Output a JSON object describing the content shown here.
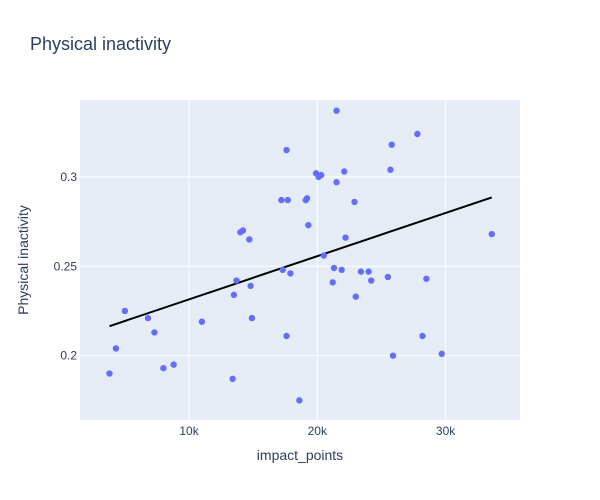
{
  "chart_data": {
    "type": "scatter",
    "title": "Physical inactivity",
    "xlabel": "impact_points",
    "ylabel": "Physical inactivity",
    "xlim": [
      1500,
      35800
    ],
    "ylim": [
      0.164,
      0.343
    ],
    "x_ticks": [
      {
        "value": 10000,
        "label": "10k"
      },
      {
        "value": 20000,
        "label": "20k"
      },
      {
        "value": 30000,
        "label": "30k"
      }
    ],
    "y_ticks": [
      {
        "value": 0.2,
        "label": "0.2"
      },
      {
        "value": 0.25,
        "label": "0.25"
      },
      {
        "value": 0.3,
        "label": "0.3"
      }
    ],
    "grid": true,
    "colors": {
      "points": "#636efa",
      "trendline": "#000000",
      "plot_bg": "#e5ecf6"
    },
    "series": [
      {
        "mode": "markers",
        "points": [
          {
            "x": 3800,
            "y": 0.19
          },
          {
            "x": 4300,
            "y": 0.204
          },
          {
            "x": 5000,
            "y": 0.225
          },
          {
            "x": 6800,
            "y": 0.221
          },
          {
            "x": 7300,
            "y": 0.213
          },
          {
            "x": 8000,
            "y": 0.193
          },
          {
            "x": 8800,
            "y": 0.195
          },
          {
            "x": 11000,
            "y": 0.219
          },
          {
            "x": 13400,
            "y": 0.187
          },
          {
            "x": 13500,
            "y": 0.234
          },
          {
            "x": 13700,
            "y": 0.242
          },
          {
            "x": 14000,
            "y": 0.269
          },
          {
            "x": 14200,
            "y": 0.27
          },
          {
            "x": 14700,
            "y": 0.265
          },
          {
            "x": 14800,
            "y": 0.239
          },
          {
            "x": 14900,
            "y": 0.221
          },
          {
            "x": 17200,
            "y": 0.287
          },
          {
            "x": 17300,
            "y": 0.248
          },
          {
            "x": 17600,
            "y": 0.211
          },
          {
            "x": 17600,
            "y": 0.315
          },
          {
            "x": 17700,
            "y": 0.287
          },
          {
            "x": 17900,
            "y": 0.246
          },
          {
            "x": 18600,
            "y": 0.175
          },
          {
            "x": 19100,
            "y": 0.287
          },
          {
            "x": 19200,
            "y": 0.288
          },
          {
            "x": 19300,
            "y": 0.273
          },
          {
            "x": 19900,
            "y": 0.302
          },
          {
            "x": 20100,
            "y": 0.3
          },
          {
            "x": 20300,
            "y": 0.301
          },
          {
            "x": 20500,
            "y": 0.256
          },
          {
            "x": 21200,
            "y": 0.241
          },
          {
            "x": 21300,
            "y": 0.249
          },
          {
            "x": 21500,
            "y": 0.337
          },
          {
            "x": 21500,
            "y": 0.297
          },
          {
            "x": 21900,
            "y": 0.248
          },
          {
            "x": 22100,
            "y": 0.303
          },
          {
            "x": 22200,
            "y": 0.266
          },
          {
            "x": 22900,
            "y": 0.286
          },
          {
            "x": 23000,
            "y": 0.233
          },
          {
            "x": 23400,
            "y": 0.247
          },
          {
            "x": 24000,
            "y": 0.247
          },
          {
            "x": 24200,
            "y": 0.242
          },
          {
            "x": 25500,
            "y": 0.244
          },
          {
            "x": 25700,
            "y": 0.304
          },
          {
            "x": 25800,
            "y": 0.318
          },
          {
            "x": 25900,
            "y": 0.2
          },
          {
            "x": 27800,
            "y": 0.324
          },
          {
            "x": 28200,
            "y": 0.211
          },
          {
            "x": 28500,
            "y": 0.243
          },
          {
            "x": 29700,
            "y": 0.201
          },
          {
            "x": 33600,
            "y": 0.268
          }
        ]
      },
      {
        "mode": "lines",
        "points": [
          {
            "x": 3800,
            "y": 0.2165
          },
          {
            "x": 33600,
            "y": 0.2885
          }
        ]
      }
    ]
  }
}
